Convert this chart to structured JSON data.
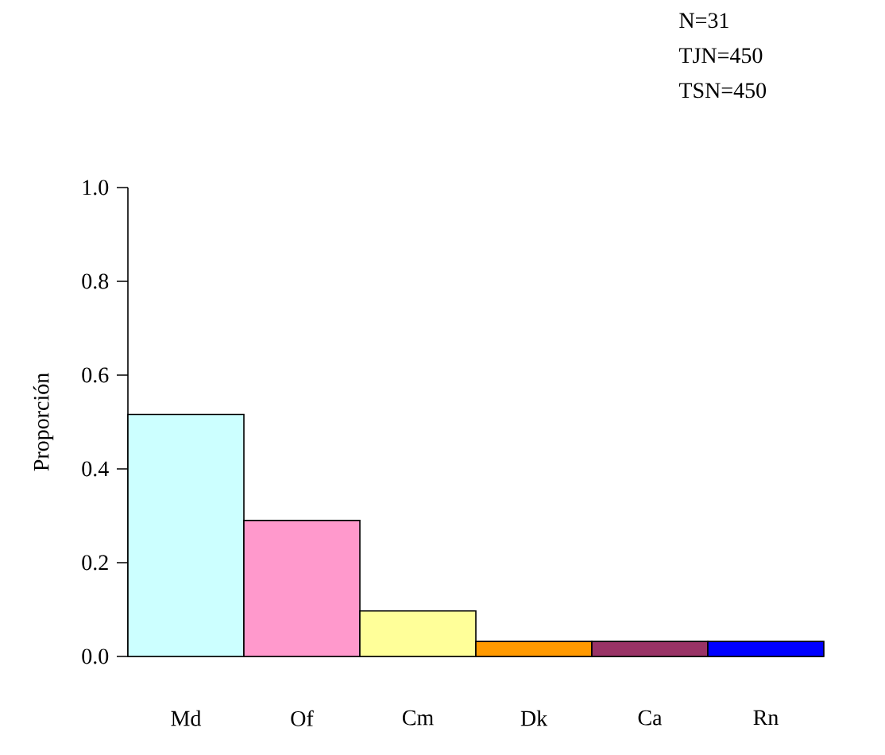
{
  "chart_data": {
    "type": "bar",
    "categories": [
      "Md",
      "Of",
      "Cm",
      "Dk",
      "Ca",
      "Rn"
    ],
    "values": [
      0.516,
      0.29,
      0.097,
      0.032,
      0.032,
      0.032
    ],
    "colors": [
      "#ccffff",
      "#ff99cc",
      "#ffff99",
      "#ff9900",
      "#993366",
      "#0000ff"
    ],
    "ylabel": "Proporción",
    "ylim": [
      0,
      1
    ],
    "yticks": [
      {
        "value": 0,
        "label": "0.0"
      },
      {
        "value": 0.2,
        "label": "0.2"
      },
      {
        "value": 0.4,
        "label": "0.4"
      },
      {
        "value": 0.6,
        "label": "0.6"
      },
      {
        "value": 0.8,
        "label": "0.8"
      },
      {
        "value": 1,
        "label": "1.0"
      }
    ],
    "annotations": [
      "N=31",
      "TJN=450",
      "TSN=450"
    ]
  }
}
